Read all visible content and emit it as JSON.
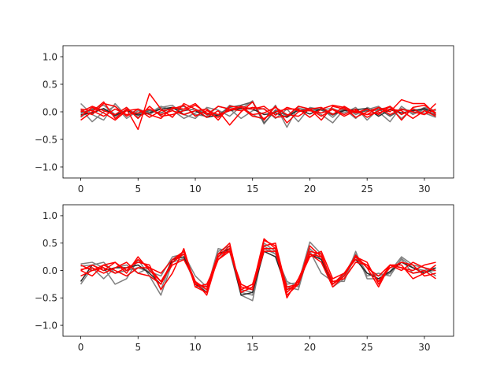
{
  "chart_data": [
    {
      "type": "line",
      "title": "",
      "xlabel": "",
      "ylabel": "",
      "xlim": [
        -1.55,
        32.55
      ],
      "ylim": [
        -1.2,
        1.2
      ],
      "xticks": [
        0,
        5,
        10,
        15,
        20,
        25,
        30
      ],
      "yticks": [
        -1.0,
        -0.5,
        0.0,
        0.5,
        1.0
      ],
      "xtick_labels": [
        "0",
        "5",
        "10",
        "15",
        "20",
        "25",
        "30"
      ],
      "ytick_labels": [
        "−1.0",
        "−0.5",
        "0.0",
        "0.5",
        "1.0"
      ],
      "grid": false,
      "x": [
        0,
        1,
        2,
        3,
        4,
        5,
        6,
        7,
        8,
        9,
        10,
        11,
        12,
        13,
        14,
        15,
        16,
        17,
        18,
        19,
        20,
        21,
        22,
        23,
        24,
        25,
        26,
        27,
        28,
        29,
        30,
        31
      ],
      "series": [
        {
          "color": "#808080",
          "values": [
            0.15,
            -0.05,
            -0.15,
            0.15,
            -0.08,
            0.05,
            -0.02,
            0.1,
            0.03,
            -0.12,
            -0.02,
            0.06,
            -0.09,
            0.12,
            0.05,
            0.2,
            -0.22,
            0.04,
            -0.08,
            0.07,
            0.02,
            0.05,
            -0.1,
            0.08,
            -0.05,
            0.04,
            0.1,
            -0.06,
            0.06,
            -0.03,
            0.08,
            0.02
          ]
        },
        {
          "color": "#808080",
          "values": [
            0.05,
            -0.18,
            0.0,
            0.1,
            -0.12,
            0.02,
            -0.05,
            0.08,
            0.12,
            -0.05,
            -0.12,
            0.08,
            0.03,
            -0.08,
            0.1,
            -0.05,
            -0.15,
            0.12,
            -0.28,
            0.1,
            0.05,
            -0.05,
            -0.2,
            0.05,
            -0.12,
            0.08,
            0.0,
            -0.18,
            0.1,
            -0.05,
            0.05,
            -0.08
          ]
        },
        {
          "color": "#808080",
          "values": [
            -0.1,
            0.05,
            0.12,
            -0.05,
            0.08,
            -0.1,
            0.05,
            -0.06,
            0.05,
            0.1,
            -0.05,
            -0.08,
            0.1,
            0.05,
            -0.12,
            0.02,
            0.06,
            -0.12,
            0.05,
            -0.18,
            0.08,
            0.04,
            0.06,
            -0.02,
            0.08,
            -0.15,
            0.05,
            0.08,
            -0.12,
            0.06,
            -0.02,
            -0.1
          ]
        },
        {
          "color": "#5a5a5a",
          "values": [
            -0.02,
            0.04,
            0.05,
            -0.08,
            0.04,
            -0.04,
            0.02,
            -0.02,
            0.08,
            0.02,
            0.05,
            -0.05,
            -0.05,
            0.08,
            0.12,
            0.18,
            -0.2,
            0.02,
            -0.06,
            0.02,
            0.06,
            0.03,
            -0.06,
            0.04,
            -0.02,
            0.02,
            0.05,
            -0.08,
            0.04,
            0.02,
            0.04,
            -0.06
          ]
        },
        {
          "color": "#2a2a2a",
          "values": [
            -0.05,
            -0.02,
            0.06,
            -0.06,
            0.02,
            -0.06,
            -0.02,
            0.05,
            0.08,
            -0.05,
            0.02,
            -0.1,
            -0.06,
            0.02,
            0.06,
            0.05,
            -0.05,
            -0.02,
            -0.1,
            0.04,
            -0.04,
            0.06,
            -0.04,
            0.02,
            0.04,
            0.06,
            -0.08,
            0.04,
            -0.02,
            0.02,
            0.06,
            -0.02
          ]
        },
        {
          "color": "#ff0000",
          "values": [
            -0.15,
            0.0,
            0.18,
            -0.12,
            0.05,
            -0.32,
            0.33,
            0.05,
            -0.1,
            0.15,
            0.05,
            -0.1,
            0.02,
            -0.24,
            0.0,
            0.18,
            -0.15,
            0.1,
            -0.2,
            0.0,
            0.05,
            -0.15,
            0.1,
            0.05,
            0.0,
            -0.05,
            0.08,
            0.0,
            0.22,
            0.15,
            0.15,
            -0.05
          ]
        },
        {
          "color": "#ff0000",
          "values": [
            0.02,
            -0.05,
            0.15,
            0.1,
            -0.08,
            0.05,
            -0.05,
            -0.12,
            0.08,
            0.05,
            0.15,
            -0.05,
            0.1,
            0.05,
            0.08,
            -0.08,
            -0.12,
            0.0,
            0.05,
            0.05,
            -0.1,
            0.05,
            0.12,
            0.08,
            -0.1,
            0.0,
            0.08,
            -0.05,
            0.05,
            0.0,
            -0.05,
            0.15
          ]
        },
        {
          "color": "#ff0000",
          "values": [
            -0.08,
            0.08,
            -0.02,
            -0.15,
            0.02,
            0.05,
            -0.1,
            0.02,
            0.05,
            0.12,
            -0.08,
            0.02,
            -0.05,
            0.02,
            0.1,
            0.05,
            0.1,
            -0.06,
            0.08,
            0.02,
            0.02,
            -0.02,
            0.04,
            -0.08,
            0.02,
            -0.05,
            -0.02,
            0.05,
            0.02,
            -0.12,
            0.02,
            -0.08
          ]
        },
        {
          "color": "#ff0000",
          "values": [
            0.05,
            0.02,
            -0.08,
            0.05,
            -0.05,
            -0.02,
            0.05,
            -0.05,
            0.02,
            -0.05,
            0.02,
            0.05,
            -0.15,
            0.1,
            0.08,
            -0.05,
            -0.02,
            0.08,
            -0.05,
            -0.08,
            0.05,
            -0.08,
            0.05,
            -0.05,
            0.05,
            -0.1,
            0.02,
            0.1,
            -0.15,
            0.08,
            0.12,
            -0.02
          ]
        },
        {
          "color": "#ff0000",
          "values": [
            0.0,
            0.1,
            0.02,
            -0.05,
            0.08,
            -0.12,
            0.1,
            -0.08,
            -0.05,
            0.02,
            0.12,
            -0.02,
            -0.1,
            0.05,
            0.02,
            0.08,
            0.05,
            -0.1,
            -0.08,
            0.1,
            0.05,
            0.08,
            -0.05,
            0.1,
            -0.02,
            0.05,
            -0.05,
            0.1,
            -0.05,
            0.05,
            -0.05,
            0.05
          ]
        }
      ]
    },
    {
      "type": "line",
      "title": "",
      "xlabel": "",
      "ylabel": "",
      "xlim": [
        -1.55,
        32.55
      ],
      "ylim": [
        -1.2,
        1.2
      ],
      "xticks": [
        0,
        5,
        10,
        15,
        20,
        25,
        30
      ],
      "yticks": [
        -1.0,
        -0.5,
        0.0,
        0.5,
        1.0
      ],
      "xtick_labels": [
        "0",
        "5",
        "10",
        "15",
        "20",
        "25",
        "30"
      ],
      "ytick_labels": [
        "−1.0",
        "−0.5",
        "0.0",
        "0.5",
        "1.0"
      ],
      "grid": false,
      "x": [
        0,
        1,
        2,
        3,
        4,
        5,
        6,
        7,
        8,
        9,
        10,
        11,
        12,
        13,
        14,
        15,
        16,
        17,
        18,
        19,
        20,
        21,
        22,
        23,
        24,
        25,
        26,
        27,
        28,
        29,
        30,
        31
      ],
      "series": [
        {
          "color": "#808080",
          "values": [
            0.12,
            0.15,
            0.05,
            -0.25,
            -0.15,
            0.2,
            -0.1,
            -0.45,
            0.15,
            0.22,
            -0.22,
            -0.35,
            0.4,
            0.35,
            -0.45,
            -0.55,
            0.45,
            0.3,
            -0.25,
            -0.22,
            0.52,
            0.3,
            -0.25,
            -0.08,
            0.3,
            -0.05,
            -0.1,
            -0.02,
            0.25,
            0.1,
            0.05,
            -0.1
          ]
        },
        {
          "color": "#808080",
          "values": [
            0.08,
            0.1,
            0.15,
            -0.05,
            0.0,
            0.05,
            -0.02,
            -0.1,
            0.25,
            0.3,
            -0.2,
            -0.4,
            0.35,
            0.45,
            -0.4,
            -0.45,
            0.5,
            0.35,
            -0.3,
            -0.35,
            0.4,
            0.2,
            -0.3,
            -0.15,
            0.25,
            -0.1,
            -0.05,
            -0.1,
            0.22,
            0.05,
            0.0,
            0.05
          ]
        },
        {
          "color": "#808080",
          "values": [
            -0.25,
            0.05,
            -0.15,
            0.05,
            0.1,
            -0.05,
            0.05,
            -0.35,
            0.2,
            0.3,
            -0.1,
            -0.3,
            0.25,
            0.4,
            -0.35,
            -0.4,
            0.4,
            0.3,
            -0.2,
            -0.3,
            0.35,
            -0.05,
            -0.2,
            -0.2,
            0.35,
            -0.15,
            -0.15,
            -0.05,
            0.2,
            -0.05,
            -0.02,
            0.0
          ]
        },
        {
          "color": "#2a2a2a",
          "values": [
            -0.2,
            0.1,
            0.0,
            0.05,
            0.05,
            0.1,
            -0.05,
            -0.25,
            0.2,
            0.25,
            -0.25,
            -0.4,
            0.3,
            0.4,
            -0.45,
            -0.4,
            0.35,
            0.25,
            -0.35,
            -0.25,
            0.3,
            0.2,
            -0.25,
            -0.05,
            0.2,
            -0.05,
            -0.15,
            -0.02,
            0.15,
            0.05,
            -0.05,
            0.05
          ]
        },
        {
          "color": "#ff0000",
          "values": [
            0.0,
            -0.1,
            0.1,
            0.15,
            -0.05,
            0.25,
            0.0,
            -0.2,
            0.15,
            0.35,
            -0.3,
            -0.25,
            0.2,
            0.35,
            -0.3,
            -0.35,
            0.55,
            0.45,
            -0.45,
            -0.25,
            0.35,
            0.3,
            -0.25,
            -0.1,
            0.25,
            0.15,
            -0.25,
            0.1,
            0.05,
            0.0,
            0.1,
            0.15
          ]
        },
        {
          "color": "#ff0000",
          "values": [
            0.1,
            0.0,
            0.05,
            -0.05,
            0.05,
            0.15,
            0.1,
            -0.35,
            -0.05,
            0.4,
            -0.3,
            -0.4,
            0.3,
            0.5,
            -0.4,
            -0.3,
            0.58,
            0.4,
            -0.5,
            -0.15,
            0.3,
            0.15,
            -0.3,
            -0.1,
            0.28,
            0.05,
            -0.3,
            0.1,
            0.1,
            -0.15,
            -0.05,
            0.1
          ]
        },
        {
          "color": "#ff0000",
          "values": [
            0.02,
            0.05,
            -0.05,
            0.05,
            0.15,
            -0.05,
            -0.1,
            -0.25,
            0.15,
            0.3,
            -0.2,
            -0.45,
            0.25,
            0.45,
            -0.35,
            -0.25,
            0.45,
            0.5,
            -0.35,
            -0.25,
            0.45,
            0.25,
            -0.2,
            -0.15,
            0.15,
            0.1,
            -0.2,
            0.05,
            0.15,
            0.1,
            -0.1,
            -0.05
          ]
        },
        {
          "color": "#ff0000",
          "values": [
            0.0,
            0.1,
            0.0,
            0.15,
            0.0,
            0.2,
            0.05,
            -0.05,
            0.2,
            0.35,
            -0.25,
            -0.3,
            0.3,
            0.35,
            -0.25,
            -0.35,
            0.4,
            0.4,
            -0.3,
            -0.25,
            0.3,
            0.25,
            -0.25,
            -0.05,
            0.2,
            0.1,
            -0.2,
            0.1,
            0.0,
            0.15,
            0.05,
            0.0
          ]
        },
        {
          "color": "#ff0000",
          "values": [
            -0.1,
            0.0,
            0.1,
            0.0,
            -0.1,
            0.05,
            0.05,
            -0.2,
            0.1,
            0.2,
            -0.2,
            -0.35,
            0.2,
            0.4,
            -0.4,
            -0.3,
            0.35,
            0.35,
            -0.4,
            -0.2,
            0.25,
            0.35,
            -0.15,
            -0.05,
            0.25,
            0.05,
            -0.1,
            0.1,
            0.05,
            -0.05,
            0.0,
            -0.15
          ]
        }
      ]
    }
  ]
}
